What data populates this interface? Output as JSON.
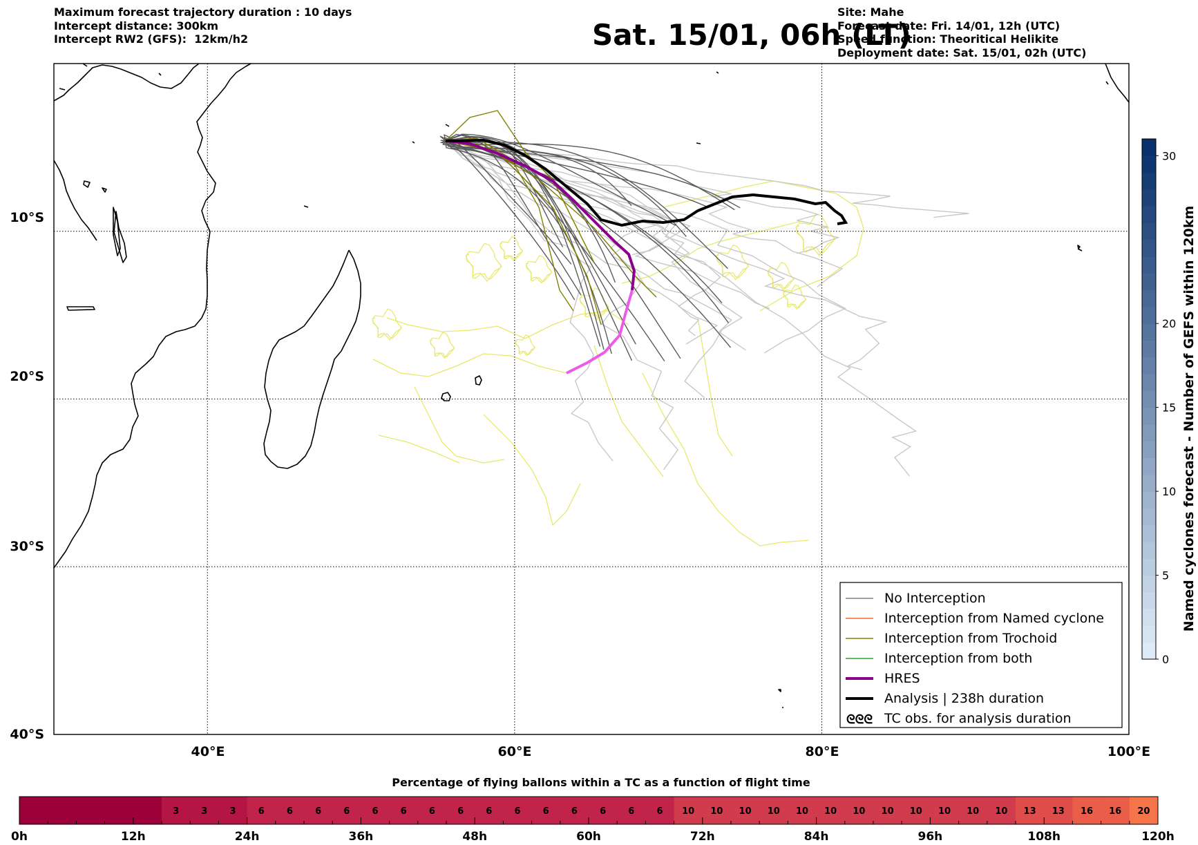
{
  "header": {
    "left_lines": [
      "Maximum forecast trajectory duration : 10 days",
      "Intercept distance: 300km",
      "Intercept RW2 (GFS):  12km/h2"
    ],
    "title": "Sat. 15/01, 06h (LT)",
    "right_lines": [
      "Site: Mahe",
      "Forecast date: Fri. 14/01, 12h (UTC)",
      "Speed function: Theoritical Helikite",
      "Deployment date: Sat. 15/01, 02h (UTC)"
    ]
  },
  "map": {
    "lon_range": [
      30,
      100
    ],
    "lat_range": [
      -40,
      0
    ],
    "lon_ticks": [
      "40°E",
      "60°E",
      "80°E",
      "100°E"
    ],
    "lat_ticks": [
      "10°S",
      "20°S",
      "30°S",
      "40°S"
    ],
    "site": {
      "name": "Mahe",
      "lon": 55.5,
      "lat": -4.6
    },
    "colors": {
      "no_interception_gefs": "#5a5a5a",
      "no_interception_light": "#c8c8c8",
      "trochoid": "#808000",
      "tc_obs": "#e8e86a",
      "hres_early": "#8b008b",
      "hres_late": "#ee5ae8",
      "analysis": "#000000"
    }
  },
  "legend": {
    "items": [
      {
        "label": "No Interception",
        "color": "#808080",
        "style": "thin"
      },
      {
        "label": "Interception from Named cyclone",
        "color": "#ff6a2a",
        "style": "thin"
      },
      {
        "label": "Interception from Trochoid",
        "color": "#808000",
        "style": "thin"
      },
      {
        "label": "Interception from both",
        "color": "#2ca02c",
        "style": "thin"
      },
      {
        "label": "HRES",
        "color": "#8b008b",
        "style": "thick"
      },
      {
        "label": "Analysis | 238h duration",
        "color": "#000000",
        "style": "thick"
      },
      {
        "label": "TC obs. for analysis duration",
        "color": "#000000",
        "style": "glyph",
        "glyph": "ᘓᘓᘓ"
      }
    ]
  },
  "colorbar_right": {
    "label": "Named cyclones forecast - Number of GEFS within 120km",
    "range": [
      0,
      31
    ],
    "ticks": [
      "0",
      "5",
      "10",
      "15",
      "20",
      "30"
    ]
  },
  "bottom_bar": {
    "title": "Percentage of flying ballons within a TC as a function of flight time",
    "time_labels": [
      "0h",
      "12h",
      "24h",
      "36h",
      "48h",
      "60h",
      "72h",
      "84h",
      "96h",
      "108h",
      "120h"
    ],
    "cells": [
      "",
      "",
      "",
      "",
      "",
      "3",
      "3",
      "3",
      "6",
      "6",
      "6",
      "6",
      "6",
      "6",
      "6",
      "6",
      "6",
      "6",
      "6",
      "6",
      "6",
      "6",
      "6",
      "10",
      "10",
      "10",
      "10",
      "10",
      "10",
      "10",
      "10",
      "10",
      "10",
      "10",
      "10",
      "13",
      "13",
      "16",
      "16",
      "20"
    ],
    "cell_colors": {
      "0": "#9e003a",
      "3": "#b41543",
      "6": "#c2234b",
      "10": "#d03c4d",
      "13": "#df4d4b",
      "16": "#ea5d48",
      "20": "#f4754a"
    }
  }
}
